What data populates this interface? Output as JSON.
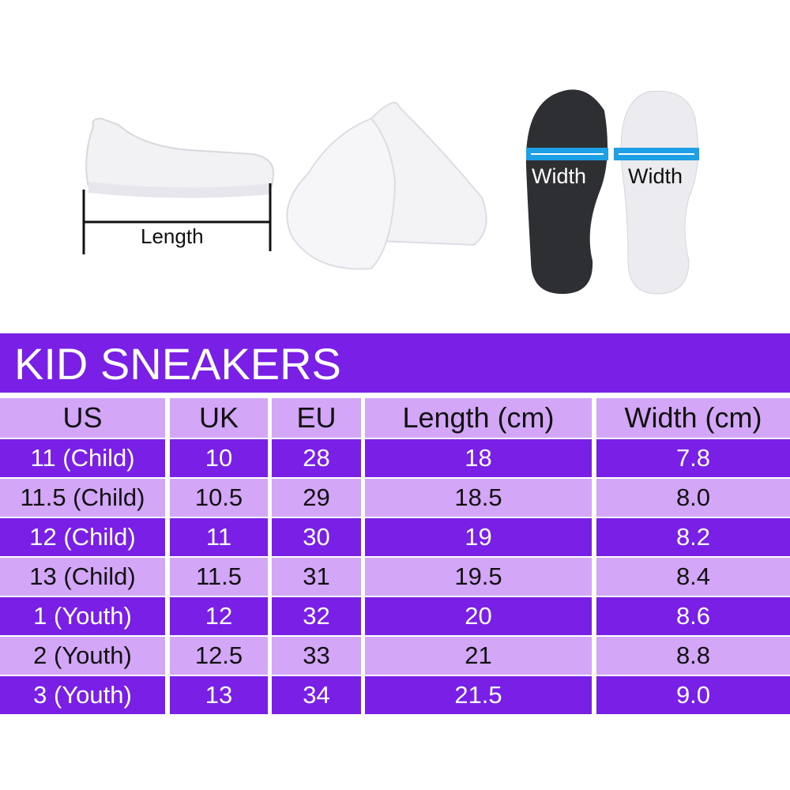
{
  "illustration": {
    "length_label": "Length",
    "width_label_dark": "Width",
    "width_label_light": "Width",
    "arrow_color": "#1ea0e6"
  },
  "title": "KID SNEAKERS",
  "colors": {
    "banner": "#7a1fe6",
    "row_dark": "#7a1fe6",
    "row_light": "#d3a6f8"
  },
  "table": {
    "headers": [
      "US",
      "UK",
      "EU",
      "Length (cm)",
      "Width (cm)"
    ],
    "rows": [
      [
        "11 (Child)",
        "10",
        "28",
        "18",
        "7.8"
      ],
      [
        "11.5 (Child)",
        "10.5",
        "29",
        "18.5",
        "8.0"
      ],
      [
        "12 (Child)",
        "11",
        "30",
        "19",
        "8.2"
      ],
      [
        "13 (Child)",
        "11.5",
        "31",
        "19.5",
        "8.4"
      ],
      [
        "1 (Youth)",
        "12",
        "32",
        "20",
        "8.6"
      ],
      [
        "2 (Youth)",
        "12.5",
        "33",
        "21",
        "8.8"
      ],
      [
        "3 (Youth)",
        "13",
        "34",
        "21.5",
        "9.0"
      ]
    ]
  }
}
